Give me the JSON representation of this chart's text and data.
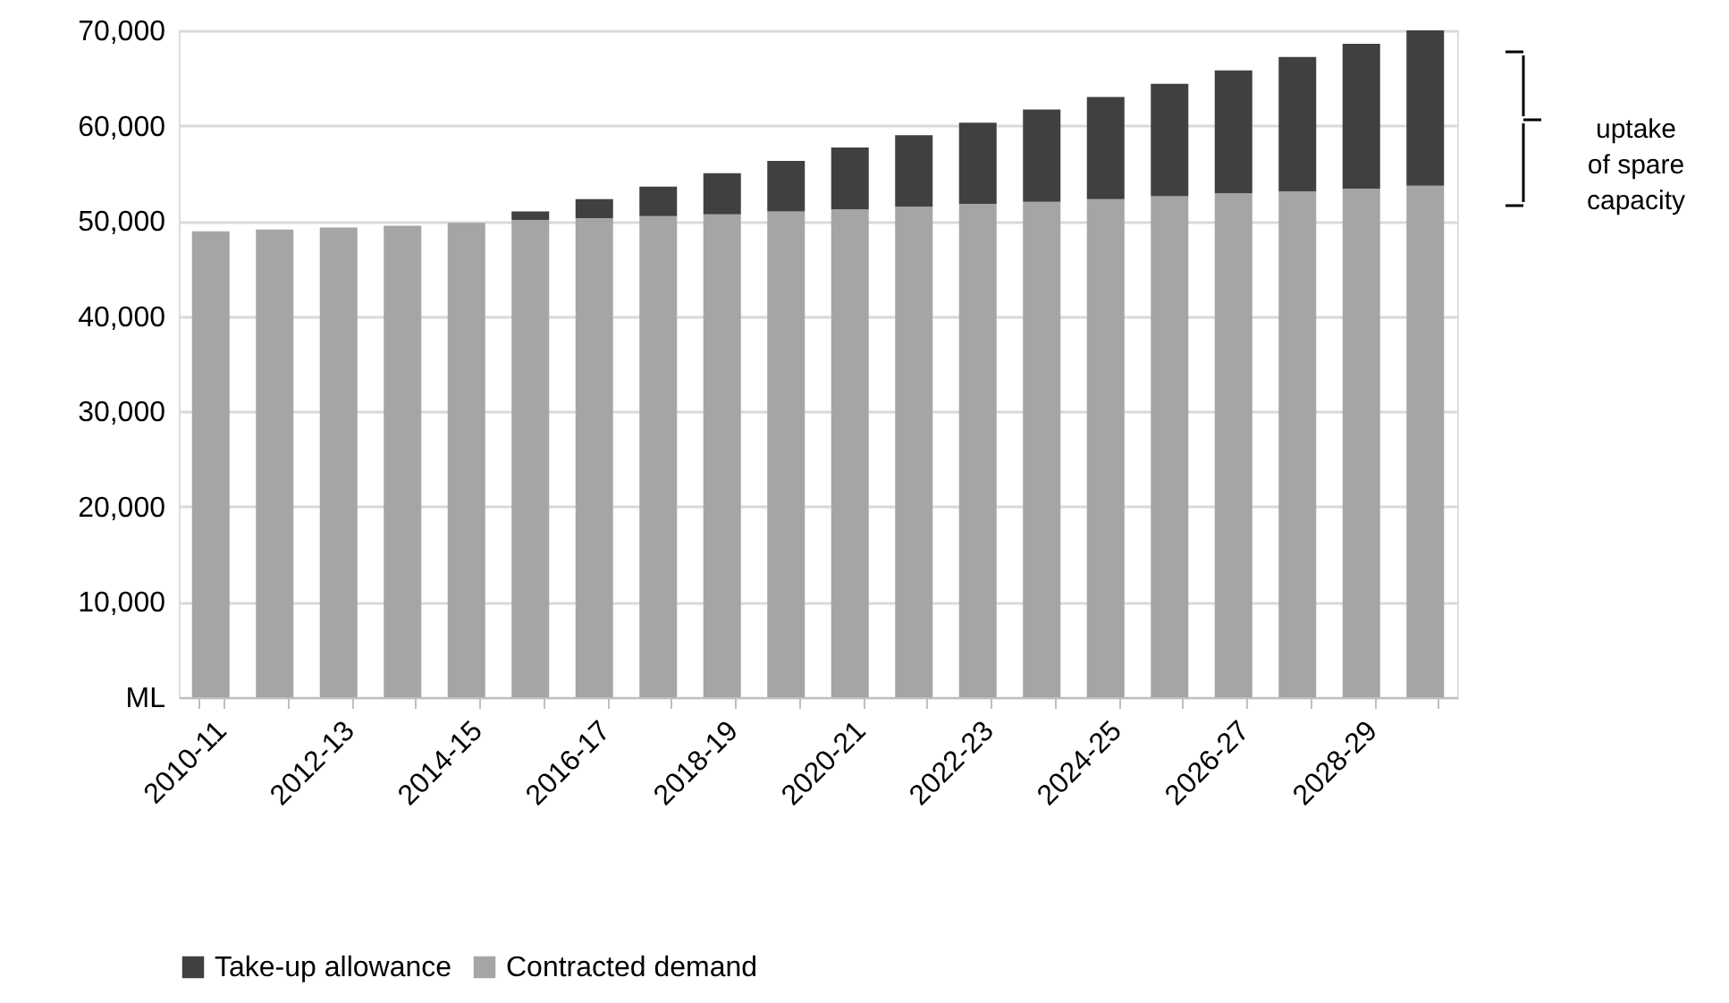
{
  "chart_data": {
    "type": "bar",
    "stacked": true,
    "categories": [
      "2010-11",
      null,
      "2012-13",
      null,
      "2014-15",
      null,
      "2016-17",
      null,
      "2018-19",
      null,
      "2020-21",
      null,
      "2022-23",
      null,
      "2024-25",
      null,
      "2026-27",
      null,
      "2028-29",
      null
    ],
    "series": [
      {
        "name": "Contracted demand",
        "color": "#a5a5a5",
        "values": [
          48900,
          49100,
          49300,
          49500,
          49800,
          50100,
          50300,
          50500,
          50700,
          51000,
          51200,
          51500,
          51800,
          52000,
          52300,
          52600,
          52900,
          53100,
          53400,
          53700
        ]
      },
      {
        "name": "Take-up allowance",
        "color": "#404040",
        "values": [
          0,
          0,
          0,
          0,
          0,
          900,
          2000,
          3100,
          4300,
          5300,
          6500,
          7500,
          8500,
          9700,
          10700,
          11800,
          12900,
          14100,
          15200,
          16300
        ]
      }
    ],
    "ylim": [
      0,
      70000
    ],
    "yticks": [
      {
        "value": 0,
        "label": "ML"
      },
      {
        "value": 10000,
        "label": "10,000"
      },
      {
        "value": 20000,
        "label": "20,000"
      },
      {
        "value": 30000,
        "label": "30,000"
      },
      {
        "value": 40000,
        "label": "40,000"
      },
      {
        "value": 50000,
        "label": "50,000"
      },
      {
        "value": 60000,
        "label": "60,000"
      },
      {
        "value": 70000,
        "label": "70,000"
      }
    ],
    "grid": "y",
    "legend": "bottom",
    "annotations": [
      "uptake\nof spare\ncapacity"
    ]
  }
}
